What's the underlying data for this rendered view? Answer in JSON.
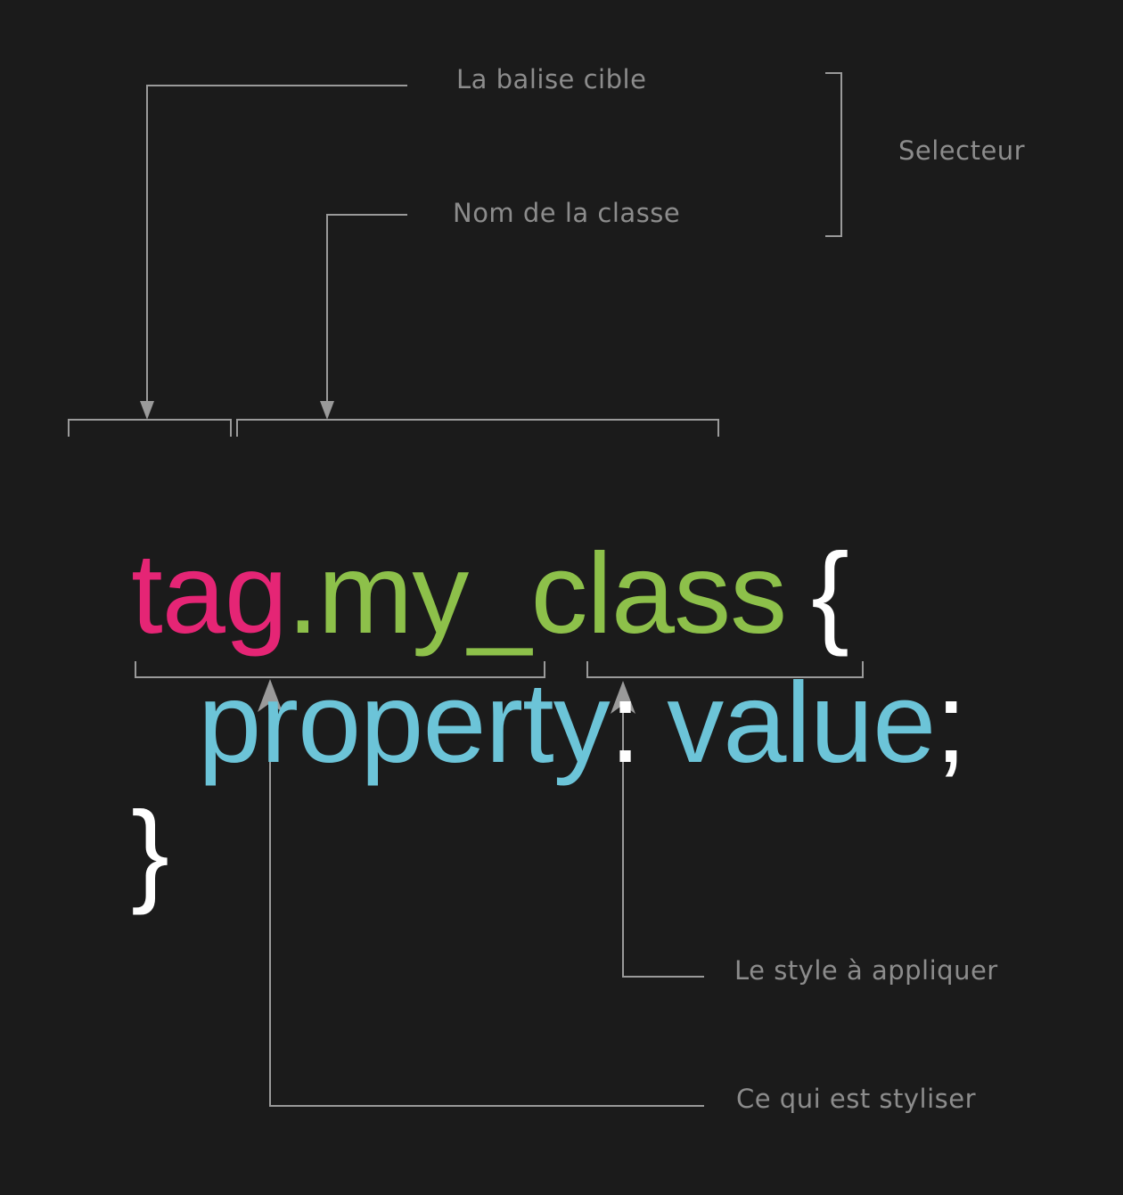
{
  "annotations": {
    "target_tag": "La balise cible",
    "class_name": "Nom de la classe",
    "selector": "Selecteur",
    "style_to_apply": "Le style à appliquer",
    "what_is_styled": "Ce qui est styliser"
  },
  "code": {
    "line1": {
      "tag": "tag",
      "dot": ".",
      "class_name": "my_class",
      "open_brace": "{"
    },
    "line2": {
      "property": "property",
      "colon": ":",
      "value": "value",
      "semicolon": ";"
    },
    "line3": {
      "close_brace": "}"
    }
  },
  "colors": {
    "background": "#1b1b1b",
    "tag": "#e52575",
    "class": "#8dc04a",
    "property_value": "#6cc4d8",
    "punctuation": "#ffffff",
    "annotation_text": "#8c8c8c",
    "connector": "#9a9a9a"
  }
}
